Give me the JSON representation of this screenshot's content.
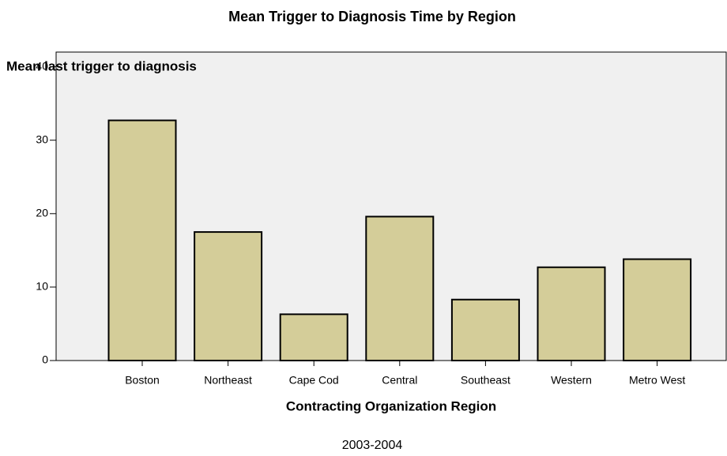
{
  "chart_data": {
    "type": "bar",
    "title": "Mean Trigger to Diagnosis Time by Region",
    "y_label": "Mean last trigger to diagnosis",
    "x_label": "Contracting Organization Region",
    "footnote": "2003-2004",
    "categories": [
      "Boston",
      "Northeast",
      "Cape Cod",
      "Central",
      "Southeast",
      "Western",
      "Metro West"
    ],
    "values": [
      32.7,
      17.5,
      6.3,
      19.6,
      8.3,
      12.7,
      13.8
    ],
    "color": "#d4cd99",
    "ylim": [
      0,
      42
    ],
    "yticks": [
      0,
      10,
      20,
      30,
      40
    ],
    "grid": false
  }
}
